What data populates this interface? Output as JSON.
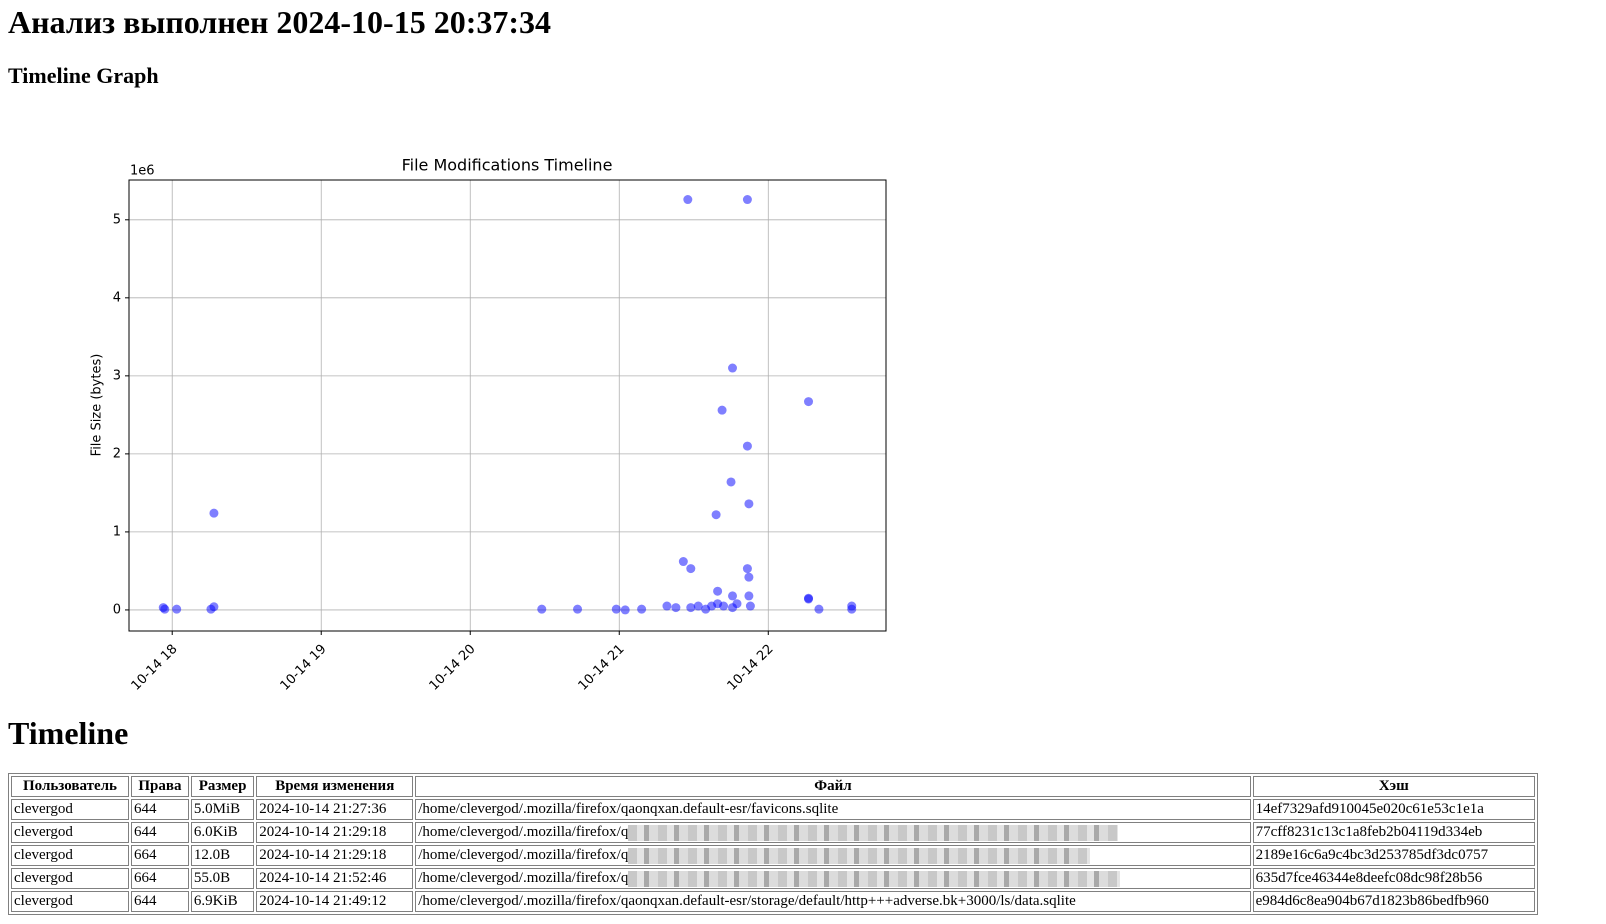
{
  "header": {
    "title": "Анализ выполнен 2024-10-15 20:37:34",
    "graph_heading": "Timeline Graph",
    "timeline_heading": "Timeline"
  },
  "chart_data": {
    "type": "scatter",
    "title": "File Modifications Timeline",
    "y_label": "File Size (bytes)",
    "y_offset_label": "1e6",
    "x": [
      17.94,
      17.95,
      18.03,
      18.26,
      18.28,
      18.28,
      20.48,
      20.72,
      20.98,
      21.04,
      21.15,
      21.32,
      21.38,
      21.43,
      21.46,
      21.48,
      21.48,
      21.53,
      21.58,
      21.62,
      21.65,
      21.66,
      21.66,
      21.69,
      21.7,
      21.75,
      21.76,
      21.76,
      21.76,
      21.79,
      21.86,
      21.86,
      21.87,
      21.86,
      21.87,
      21.87,
      21.88,
      22.27,
      22.27,
      22.27,
      22.34,
      22.56,
      22.56
    ],
    "values": [
      0.03,
      0.01,
      0.01,
      0.01,
      1.24,
      0.04,
      0.01,
      0.01,
      0.01,
      0,
      0.01,
      0.05,
      0.03,
      0.62,
      5.26,
      0.53,
      0.03,
      0.05,
      0.01,
      0.05,
      1.22,
      0.24,
      0.08,
      2.56,
      0.05,
      1.64,
      3.1,
      0.18,
      0.03,
      0.08,
      5.26,
      2.1,
      1.36,
      0.53,
      0.42,
      0.18,
      0.05,
      2.67,
      0.14,
      0.15,
      0.01,
      0.05,
      0.01
    ],
    "color": "#0000ff",
    "opacity": 0.5,
    "xlim": [
      17.71,
      22.79
    ],
    "ylim": [
      -0.27,
      5.51
    ],
    "xticks": [
      {
        "value": 18,
        "label": "10-14 18"
      },
      {
        "value": 19,
        "label": "10-14 19"
      },
      {
        "value": 20,
        "label": "10-14 20"
      },
      {
        "value": 21,
        "label": "10-14 21"
      },
      {
        "value": 22,
        "label": "10-14 22"
      }
    ],
    "yticks": [
      0,
      1,
      2,
      3,
      4,
      5
    ],
    "grid": true
  },
  "table": {
    "columns": [
      "Пользователь",
      "Права",
      "Размер",
      "Время изменения",
      "Файл",
      "Хэш"
    ],
    "rows": [
      [
        "clevergod",
        "644",
        "5.0MiB",
        "2024-10-14 21:27:36",
        "/home/clevergod/.mozilla/firefox/qaonqxan.default-esr/favicons.sqlite",
        "14ef7329afd910045e020c61e53c1e1a"
      ],
      [
        "clevergod",
        "644",
        "6.0KiB",
        "2024-10-14 21:29:18",
        "/home/clevergod/.mozilla/firefox/q",
        "77cff8231c13c1a8feb2b04119d334eb"
      ],
      [
        "clevergod",
        "664",
        "12.0B",
        "2024-10-14 21:29:18",
        "/home/clevergod/.mozilla/firefox/q",
        "2189e16c6a9c4bc3d253785df3dc0757"
      ],
      [
        "clevergod",
        "664",
        "55.0B",
        "2024-10-14 21:52:46",
        "/home/clevergod/.mozilla/firefox/q",
        "635d7fce46344e8deefc08dc98f28b56"
      ],
      [
        "clevergod",
        "644",
        "6.9KiB",
        "2024-10-14 21:49:12",
        "/home/clevergod/.mozilla/firefox/qaonqxan.default-esr/storage/default/http+++adverse.bk+3000/ls/data.sqlite",
        "e984d6c8ea904b67d1823b86bedfb960"
      ]
    ]
  }
}
